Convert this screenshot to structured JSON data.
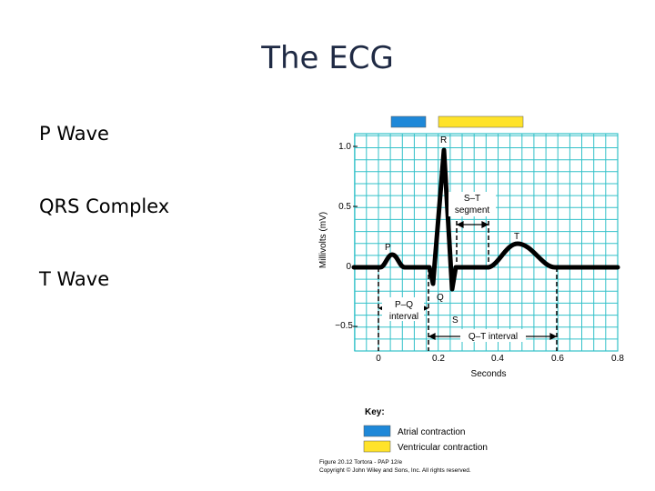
{
  "slide": {
    "title": "The ECG",
    "bullets": [
      "P Wave",
      "QRS Complex",
      "T Wave"
    ]
  },
  "figure": {
    "y_axis_label": "Millivolts (mV)",
    "x_axis_label": "Seconds",
    "y_ticks": [
      "1.0",
      "0.5",
      "0",
      "−0.5"
    ],
    "x_ticks": [
      "0",
      "0.2",
      "0.4",
      "0.6",
      "0.8"
    ],
    "wave_labels": {
      "p": "P",
      "q": "Q",
      "r": "R",
      "s": "S",
      "t": "T"
    },
    "st_segment_label": [
      "S–T",
      "segment"
    ],
    "pq_interval_label": [
      "P–Q",
      "interval"
    ],
    "qt_interval_label": "Q–T interval",
    "key_title": "Key:",
    "key_items": [
      {
        "label": "Atrial contraction",
        "color": "#1e88d8"
      },
      {
        "label": "Ventricular contraction",
        "color": "#ffe32a"
      }
    ],
    "credit_line1": "Figure 20.12  Tortora - PAP 12/e",
    "credit_line2": "Copyright © John Wiley and Sons, Inc. All rights reserved.",
    "grid_color": "#33c1c9",
    "trace_color": "#000000"
  }
}
